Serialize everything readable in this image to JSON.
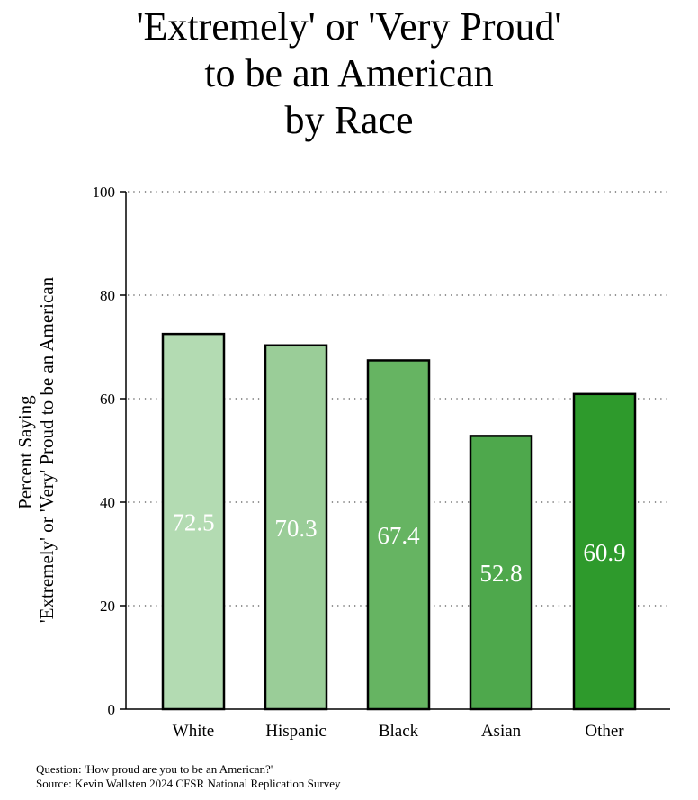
{
  "chart_data": {
    "type": "bar",
    "title_lines": [
      "'Extremely' or 'Very Proud'",
      "to be an American",
      "by Race"
    ],
    "ylabel_lines": [
      "Percent Saying",
      "'Extremely' or 'Very' Proud to be an American"
    ],
    "xlabel": "",
    "categories": [
      "White",
      "Hispanic",
      "Black",
      "Asian",
      "Other"
    ],
    "values": [
      72.5,
      70.3,
      67.4,
      52.8,
      60.9
    ],
    "value_labels": [
      "72.5",
      "70.3",
      "67.4",
      "52.8",
      "60.9"
    ],
    "colors": [
      "#b3dbb2",
      "#9acd98",
      "#66b462",
      "#4ea84c",
      "#2e9a2c"
    ],
    "ylim": [
      0,
      100
    ],
    "yticks": [
      0,
      20,
      40,
      60,
      80,
      100
    ],
    "grid": true,
    "legend": false
  },
  "footnote": {
    "question": "Question: 'How proud are you to be an American?'",
    "source": "Source: Kevin Wallsten 2024 CFSR National Replication Survey"
  }
}
